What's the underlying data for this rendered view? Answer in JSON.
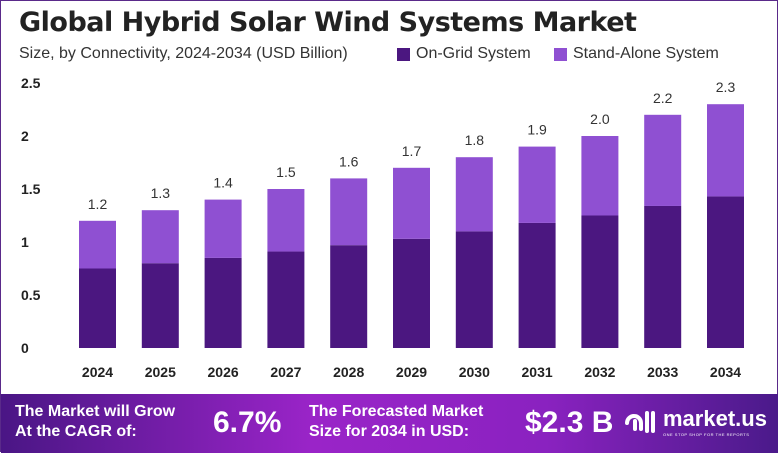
{
  "title": "Global Hybrid Solar Wind Systems Market",
  "subtitle": "Size, by Connectivity, 2024-2034 (USD Billion)",
  "colors": {
    "on_grid": "#4b1780",
    "stand_alone": "#8f50d2"
  },
  "chart_data": {
    "type": "bar",
    "stacked": true,
    "categories": [
      "2024",
      "2025",
      "2026",
      "2027",
      "2028",
      "2029",
      "2030",
      "2031",
      "2032",
      "2033",
      "2034"
    ],
    "series": [
      {
        "name": "On-Grid System",
        "values": [
          0.75,
          0.8,
          0.85,
          0.91,
          0.97,
          1.03,
          1.1,
          1.18,
          1.25,
          1.34,
          1.43
        ]
      },
      {
        "name": "Stand-Alone System",
        "values": [
          0.45,
          0.5,
          0.55,
          0.59,
          0.63,
          0.67,
          0.7,
          0.72,
          0.75,
          0.86,
          0.87
        ]
      }
    ],
    "totals_labels": [
      "1.2",
      "1.3",
      "1.4",
      "1.5",
      "1.6",
      "1.7",
      "1.8",
      "1.9",
      "2.0",
      "2.2",
      "2.3"
    ],
    "ylim": [
      0,
      2.5
    ],
    "yticks": [
      "0",
      "0.5",
      "1",
      "1.5",
      "2",
      "2.5"
    ],
    "grid": false,
    "legend": "top-right"
  },
  "footer": {
    "cagr_text_1": "The Market will Grow",
    "cagr_text_2": "At the CAGR of:",
    "cagr_value": "6.7%",
    "forecast_text_1": "The Forecasted Market",
    "forecast_text_2": "Size for 2034 in USD:",
    "forecast_value": "$2.3 B",
    "logo_name": "market.us",
    "logo_tagline": "ONE STOP SHOP FOR THE REPORTS"
  }
}
